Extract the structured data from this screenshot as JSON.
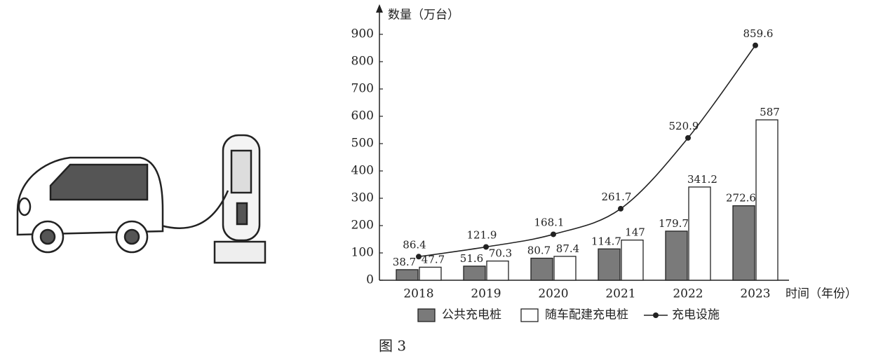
{
  "chart_data": {
    "type": "bar",
    "y_label": "数量（万台）",
    "x_label": "时间（年份）",
    "categories": [
      "2018",
      "2019",
      "2020",
      "2021",
      "2022",
      "2023"
    ],
    "series": [
      {
        "name": "公共充电桩",
        "type": "bar",
        "color": "#7a7a7a",
        "values": [
          38.7,
          51.6,
          80.7,
          114.7,
          179.7,
          272.6
        ]
      },
      {
        "name": "随车配建充电桩",
        "type": "bar",
        "color": "#ffffff",
        "values": [
          47.7,
          70.3,
          87.4,
          147,
          341.2,
          587
        ]
      },
      {
        "name": "充电设施",
        "type": "line",
        "color": "#222222",
        "values": [
          86.4,
          121.9,
          168.1,
          261.7,
          520.9,
          859.6
        ]
      }
    ],
    "ylim": [
      0,
      900
    ],
    "yticks": [
      0,
      100,
      200,
      300,
      400,
      500,
      600,
      700,
      800,
      900
    ],
    "caption": "图 3"
  }
}
